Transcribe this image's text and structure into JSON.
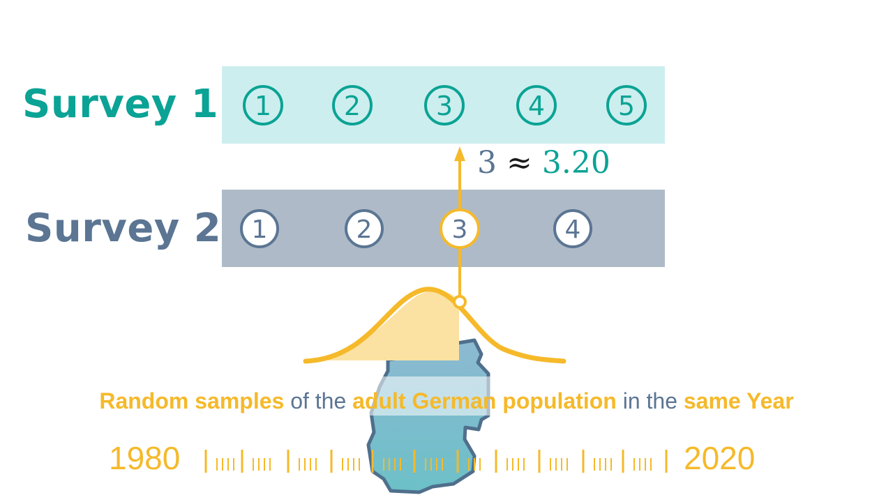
{
  "survey1": {
    "label": "Survey 1",
    "options": [
      "1",
      "2",
      "3",
      "4",
      "5"
    ]
  },
  "survey2": {
    "label": "Survey 2",
    "options": [
      "1",
      "2",
      "3",
      "4"
    ],
    "selected": "3"
  },
  "mapping": {
    "lhs": "3",
    "op": "≈",
    "rhs": "3.20"
  },
  "caption": {
    "part1": "Random samples",
    "part2": "of the",
    "part3": "adult German population",
    "part4": "in the",
    "part5": "same Year"
  },
  "timeline": {
    "start": "1980",
    "end": "2020"
  },
  "colors": {
    "teal": "#0aa395",
    "slate": "#5b7593",
    "gold": "#f5b92a",
    "band1": "#cdeeee",
    "band2": "#aebac7"
  }
}
